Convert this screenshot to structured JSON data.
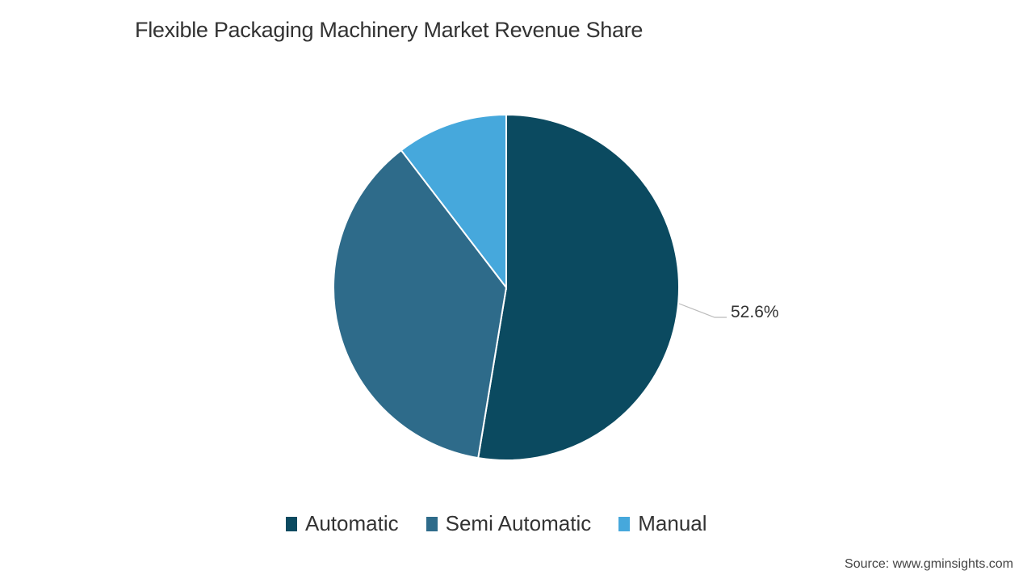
{
  "chart_data": {
    "type": "pie",
    "title": "Flexible Packaging Machinery Market Revenue Share",
    "categories": [
      "Automatic",
      "Semi Automatic",
      "Manual"
    ],
    "values": [
      52.6,
      37.0,
      10.4
    ],
    "colors": [
      "#0b4a60",
      "#2e6b8a",
      "#46a8dc"
    ],
    "data_labels": [
      {
        "category": "Automatic",
        "text": "52.6%"
      }
    ],
    "start_angle": "12 o'clock, clockwise",
    "legend_position": "bottom",
    "source": "Source: www.gminsights.com"
  },
  "header": {
    "title": "Flexible Packaging Machinery Market Revenue Share"
  },
  "labels": {
    "automatic_pct": "52.6%"
  },
  "legend": {
    "items": [
      {
        "label": "Automatic",
        "color": "#0b4a60"
      },
      {
        "label": "Semi Automatic",
        "color": "#2e6b8a"
      },
      {
        "label": "Manual",
        "color": "#46a8dc"
      }
    ]
  },
  "footer": {
    "source": "Source: www.gminsights.com"
  }
}
